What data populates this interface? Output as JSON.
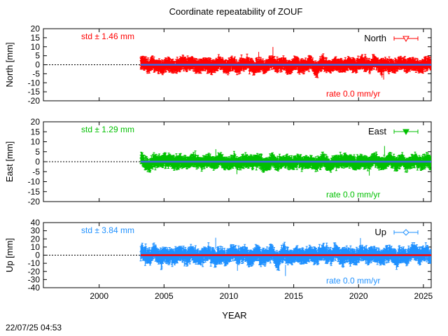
{
  "footer": {
    "timestamp": "22/07/25 04:53"
  },
  "chart_data": {
    "type": "scatter",
    "title": "Coordinate repeatability of ZOUF",
    "xlabel": "YEAR",
    "xlim": [
      1995.7,
      2025.6
    ],
    "xticks": [
      2000,
      2005,
      2010,
      2015,
      2020,
      2025
    ],
    "data_start": 2003.2,
    "data_end": 2025.6,
    "panels": [
      {
        "name": "North",
        "ylabel": "North [mm]",
        "ylim": [
          -20,
          20
        ],
        "yticks": [
          -20,
          -15,
          -10,
          -5,
          0,
          5,
          10,
          15,
          20
        ],
        "std_label": "std ± 1.46 mm",
        "rate_label": "rate  0.0 mm/yr",
        "std": 1.46,
        "rate": 0.0,
        "color": "#ff0000",
        "marker": "triangle-down-open",
        "trend_color": "#4169e1"
      },
      {
        "name": "East",
        "ylabel": "East [mm]",
        "ylim": [
          -20,
          20
        ],
        "yticks": [
          -20,
          -15,
          -10,
          -5,
          0,
          5,
          10,
          15,
          20
        ],
        "std_label": "std ± 1.29 mm",
        "rate_label": "rate  0.0 mm/yr",
        "std": 1.29,
        "rate": 0.0,
        "color": "#00c000",
        "marker": "triangle-down-filled",
        "trend_color": "#4169e1"
      },
      {
        "name": "Up",
        "ylabel": "Up [mm]",
        "ylim": [
          -40,
          40
        ],
        "yticks": [
          -40,
          -30,
          -20,
          -10,
          0,
          10,
          20,
          30,
          40
        ],
        "std_label": "std ± 3.84 mm",
        "rate_label": "rate  0.0 mm/yr",
        "std": 3.84,
        "rate": 0.0,
        "color": "#1e90ff",
        "marker": "diamond-open",
        "trend_color": "#ff0000"
      }
    ]
  }
}
